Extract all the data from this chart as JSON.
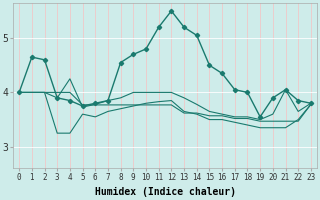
{
  "xlabel": "Humidex (Indice chaleur)",
  "bg_color": "#ceecea",
  "grid_color": "#f0c8c8",
  "grid_color_h": "#ffffff",
  "line_color": "#1a7a6e",
  "xlim": [
    -0.5,
    23.5
  ],
  "ylim": [
    2.6,
    5.65
  ],
  "xtick_labels": [
    "0",
    "1",
    "2",
    "3",
    "4",
    "5",
    "6",
    "7",
    "8",
    "9",
    "10",
    "11",
    "12",
    "13",
    "14",
    "15",
    "16",
    "17",
    "18",
    "19",
    "20",
    "21",
    "22",
    "23"
  ],
  "yticks": [
    3,
    4,
    5
  ],
  "series1_y": [
    4.0,
    4.65,
    4.6,
    3.9,
    3.85,
    3.75,
    3.8,
    3.85,
    4.55,
    4.7,
    4.8,
    5.2,
    5.5,
    5.2,
    5.05,
    4.5,
    4.35,
    4.05,
    4.0,
    3.55,
    3.9,
    4.05,
    3.85,
    3.8
  ],
  "series2_y": [
    4.0,
    4.0,
    4.0,
    3.9,
    4.25,
    3.73,
    3.78,
    3.85,
    3.9,
    4.0,
    4.0,
    4.0,
    4.0,
    3.9,
    3.78,
    3.65,
    3.6,
    3.55,
    3.55,
    3.5,
    3.6,
    4.05,
    3.65,
    3.8
  ],
  "series3_y": [
    4.0,
    4.0,
    4.0,
    3.25,
    3.25,
    3.6,
    3.55,
    3.65,
    3.7,
    3.75,
    3.8,
    3.83,
    3.85,
    3.65,
    3.6,
    3.5,
    3.5,
    3.45,
    3.4,
    3.35,
    3.35,
    3.35,
    3.5,
    3.78
  ],
  "series4_y": [
    4.0,
    4.0,
    4.0,
    4.0,
    4.0,
    3.77,
    3.77,
    3.77,
    3.77,
    3.77,
    3.77,
    3.77,
    3.77,
    3.62,
    3.62,
    3.57,
    3.57,
    3.52,
    3.52,
    3.47,
    3.47,
    3.47,
    3.47,
    3.78
  ]
}
